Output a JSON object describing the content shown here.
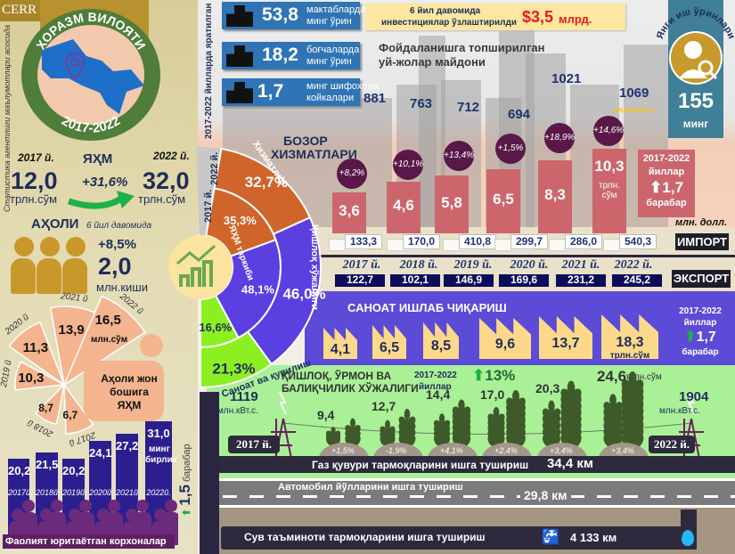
{
  "brand": {
    "logo": "CERR"
  },
  "source_note": "Статистика агентлиги маълумотлари асосида",
  "region": {
    "title": "ХОРАЗМ ВИЛОЯТИ",
    "period": "2017-2022"
  },
  "grp": {
    "label": "ЯҲМ",
    "year_start": "2017 й.",
    "year_end": "2022 й.",
    "value_start": "12,0",
    "value_end": "32,0",
    "unit": "трлн.сўм",
    "growth": "+31,6%"
  },
  "population": {
    "label": "АҲОЛИ",
    "period_note": "6 йил давомида",
    "growth": "+8,5%",
    "value": "2,0",
    "unit": "млн.киши"
  },
  "per_capita": {
    "title": "Аҳоли жон бошига ЯҲМ",
    "unit": "млн.сўм",
    "items": [
      {
        "year": "2017 й",
        "value": "6,7"
      },
      {
        "year": "2018 й",
        "value": "8,7"
      },
      {
        "year": "2019 й",
        "value": "10,3"
      },
      {
        "year": "2020 й",
        "value": "11,3"
      },
      {
        "year": "2021 й",
        "value": "13,9"
      },
      {
        "year": "2022 й",
        "value": "16,5"
      }
    ]
  },
  "enterprises": {
    "title": "Фаолият юритаётган корхоналар",
    "unit_line1": "минг",
    "unit_line2": "бирлик",
    "growth": "1,5",
    "growth_unit": "барабар",
    "items": [
      {
        "year": "2017й.",
        "value": "20,2"
      },
      {
        "year": "2018й.",
        "value": "21,5"
      },
      {
        "year": "2019й.",
        "value": "20,2"
      },
      {
        "year": "2020й.",
        "value": "24,1"
      },
      {
        "year": "2021й.",
        "value": "27,2"
      },
      {
        "year": "2022й.",
        "value": "31,0"
      }
    ]
  },
  "created": {
    "caption": "2017-2022 йилларда яратилган",
    "items": [
      {
        "value": "53,8",
        "line1": "мактабларда",
        "line2": "минг ўрин"
      },
      {
        "value": "18,2",
        "line1": "боғчаларда",
        "line2": "минг ўрин"
      },
      {
        "value": "1,7",
        "line1": "минг шифохона",
        "line2": "койкалари"
      }
    ]
  },
  "investment": {
    "line1": "6 йил давомида",
    "line2": "инвестициялар ўзлаштирилди",
    "value": "$3,5",
    "unit": "млрд."
  },
  "housing": {
    "title_line1": "Фойдаланишга топширилган",
    "title_line2": "уй-жолар майдони",
    "unit": "минг.кв.м",
    "values": [
      "881",
      "763",
      "712",
      "694",
      "1021",
      "1069"
    ]
  },
  "jobs": {
    "title": "Янги иш ўринлари",
    "value": "155",
    "unit": "минг"
  },
  "market_services": {
    "title_line1": "БОЗОР",
    "title_line2": "ХИЗМАТЛАРИ",
    "values": [
      "3,6",
      "4,6",
      "5,8",
      "6,5",
      "8,3",
      "10,3"
    ],
    "growth": [
      "+8,2%",
      "+10,1%",
      "+13,4%",
      "+1,5%",
      "+18,9%",
      "+14,6%"
    ],
    "unit_line1": "трлн.",
    "unit_line2": "сўм",
    "summary": {
      "period": "2017-2022",
      "period_unit": "йиллар",
      "multiple": "1,7",
      "multiple_unit": "барабар"
    }
  },
  "trade": {
    "unit": "млн. долл.",
    "import_label": "ИМПОРТ",
    "export_label": "ЭКСПОРТ",
    "years": [
      "2017 й.",
      "2018 й.",
      "2019 й.",
      "2020 й.",
      "2021 й.",
      "2022 й."
    ],
    "import": [
      "133,3",
      "170,0",
      "410,8",
      "299,7",
      "286,0",
      "540,3"
    ],
    "export": [
      "122,7",
      "102,1",
      "146,9",
      "169,6",
      "231,2",
      "245,2"
    ]
  },
  "chart_data": {
    "type": "pie",
    "title": "ЯҲМ таркиби",
    "ring_labels": [
      "2017 й.",
      "2022 й."
    ],
    "categories": [
      "Хизматлар",
      "Қишлоқ хўжалиги",
      "Саноат ва қурилиш"
    ],
    "series": [
      {
        "name": "2017 й.",
        "values": [
          35.3,
          48.1,
          16.6
        ],
        "labels": [
          "35,3%",
          "48,1%",
          "16,6%"
        ]
      },
      {
        "name": "2022 й.",
        "values": [
          32.7,
          46.0,
          21.3
        ],
        "labels": [
          "32,7%",
          "46,0%",
          "21,3%"
        ]
      }
    ],
    "colors": [
      "#d0652c",
      "#5b3fe0",
      "#8cf020"
    ]
  },
  "industry": {
    "title": "САНОАТ ИШЛАБ ЧИҚАРИШ",
    "values": [
      "4,1",
      "6,5",
      "8,5",
      "9,6",
      "13,7",
      "18,3"
    ],
    "unit": "трлн.сўм",
    "summary": {
      "period": "2017-2022",
      "period_unit": "йиллар",
      "multiple": "1,7",
      "multiple_unit": "барабар"
    }
  },
  "agriculture": {
    "title_line1": "ҚИШЛОҚ, ЎРМОН ВА",
    "title_line2": "БАЛИҚЧИЛИК ХЎЖАЛИГИ",
    "period": "2017-2022",
    "period_unit": "йиллар",
    "growth": "13%",
    "values": [
      "9,4",
      "12,7",
      "14,4",
      "17,0",
      "20,3",
      "24,6"
    ],
    "unit": "трлн.сўм",
    "growth_rates": [
      "+1,5%",
      "-1,9%",
      "+4,1%",
      "+2,4%",
      "+3,4%",
      "+3,4%"
    ]
  },
  "electricity": {
    "start": "1119",
    "end": "1904",
    "unit": "млн.кВт.с.",
    "year_start": "2017 й.",
    "year_end": "2022 й."
  },
  "gas": {
    "label": "Газ қувури тармоқларини ишга тушириш",
    "value": "34,4 км"
  },
  "roads": {
    "label": "Автомобил йўлларини ишга тушириш",
    "value": "29,8 км"
  },
  "water": {
    "label": "Сув таъминоти тармоқларини ишга тушириш",
    "value": "4 133 км"
  }
}
